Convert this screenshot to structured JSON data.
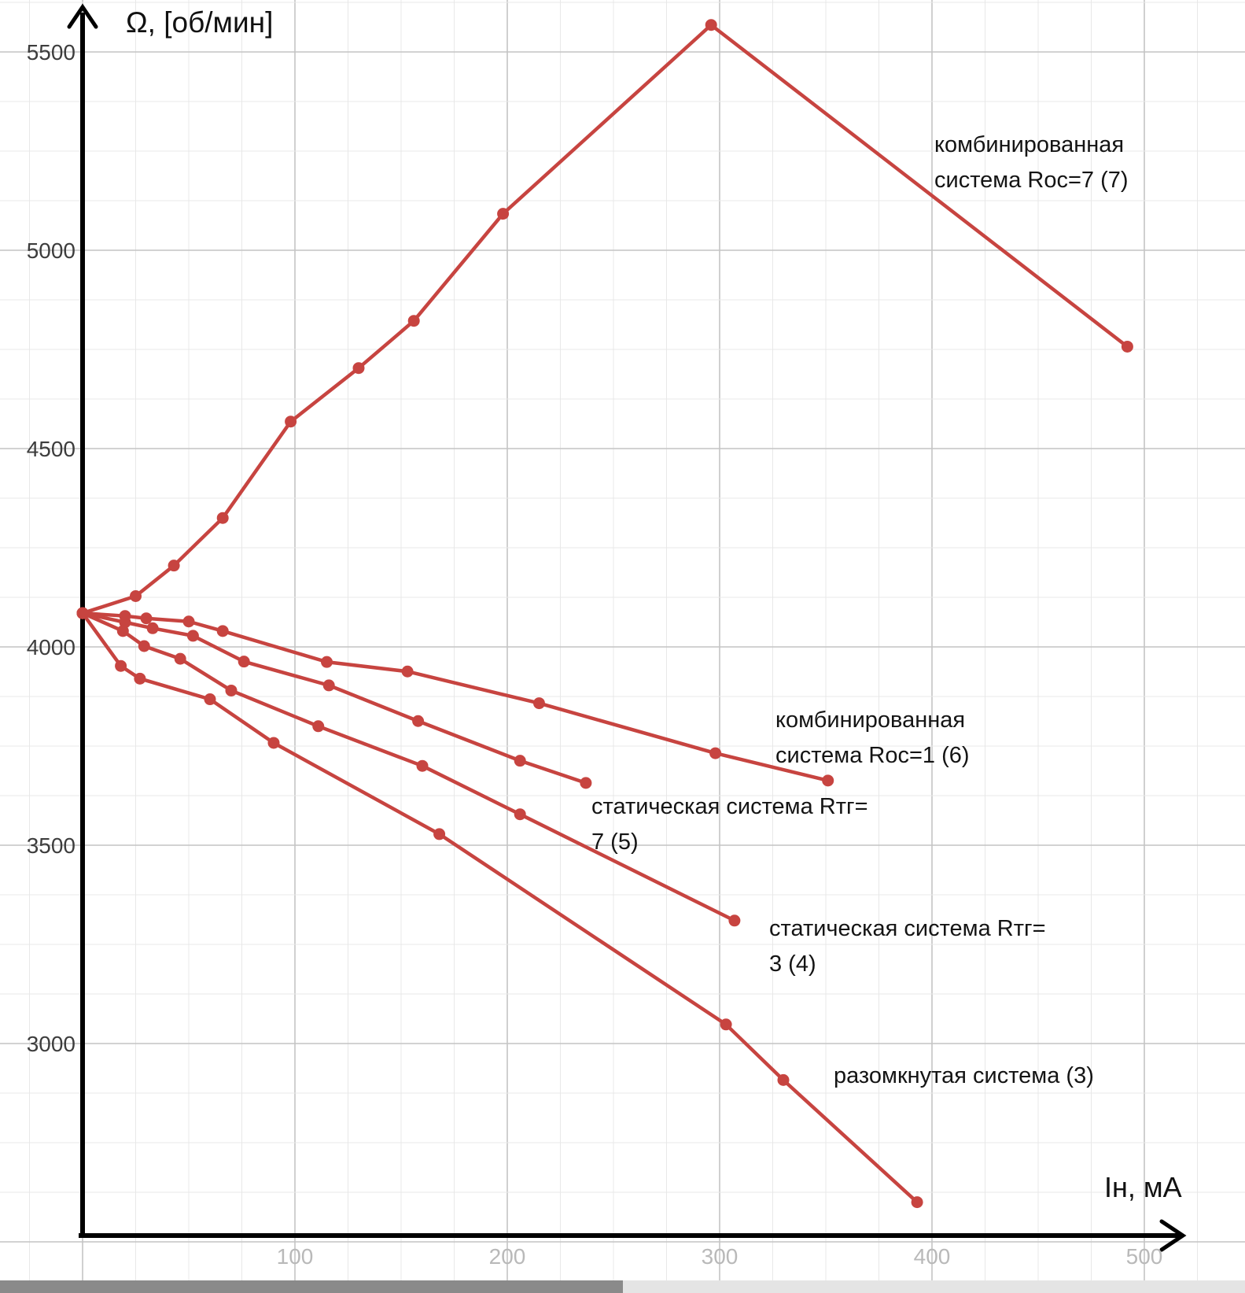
{
  "axis_titles": {
    "y": "Ω, [об/мин]",
    "x": "Iн, мА"
  },
  "chart_data": {
    "type": "line",
    "title": "",
    "xlabel": "Iн, мА",
    "ylabel": "Ω, [об/мин]",
    "xlim": [
      -39,
      547
    ],
    "ylim": [
      2510,
      5630
    ],
    "x_ticks": [
      100,
      200,
      300,
      400,
      500
    ],
    "y_ticks": [
      3000,
      3500,
      4000,
      4500,
      5000,
      5500
    ],
    "grid": {
      "on": true,
      "x_minor_step": 25,
      "x_major_step": 100,
      "y_minor_step": 125,
      "y_major_step": 500
    },
    "legend_position": "inline-annotations",
    "line_color": "#c74440",
    "axis_color": "#000000",
    "series": [
      {
        "name": "комбинированная система Roc=7 (7)",
        "points": [
          [
            0,
            4085
          ],
          [
            25,
            4128
          ],
          [
            43,
            4205
          ],
          [
            66,
            4325
          ],
          [
            98,
            4568
          ],
          [
            130,
            4703
          ],
          [
            156,
            4822
          ],
          [
            198,
            5092
          ],
          [
            296,
            5568
          ],
          [
            492,
            4757
          ]
        ]
      },
      {
        "name": "комбинированная система Roc=1 (6)",
        "points": [
          [
            0,
            4085
          ],
          [
            20,
            4078
          ],
          [
            30,
            4072
          ],
          [
            50,
            4064
          ],
          [
            66,
            4040
          ],
          [
            115,
            3962
          ],
          [
            153,
            3938
          ],
          [
            215,
            3858
          ],
          [
            298,
            3732
          ],
          [
            351,
            3663
          ]
        ]
      },
      {
        "name": "статическая система Rтг=7 (5)",
        "points": [
          [
            0,
            4085
          ],
          [
            20,
            4062
          ],
          [
            33,
            4047
          ],
          [
            52,
            4028
          ],
          [
            76,
            3963
          ],
          [
            116,
            3903
          ],
          [
            158,
            3813
          ],
          [
            206,
            3713
          ],
          [
            237,
            3657
          ]
        ]
      },
      {
        "name": "статическая система Rтг=3 (4)",
        "points": [
          [
            0,
            4085
          ],
          [
            19,
            4040
          ],
          [
            29,
            4002
          ],
          [
            46,
            3970
          ],
          [
            70,
            3890
          ],
          [
            111,
            3800
          ],
          [
            160,
            3700
          ],
          [
            206,
            3578
          ],
          [
            307,
            3310
          ]
        ]
      },
      {
        "name": "разомкнутая система (3)",
        "points": [
          [
            0,
            4085
          ],
          [
            18,
            3952
          ],
          [
            27,
            3920
          ],
          [
            60,
            3868
          ],
          [
            90,
            3758
          ],
          [
            168,
            3528
          ],
          [
            303,
            3048
          ],
          [
            330,
            2908
          ],
          [
            393,
            2600
          ]
        ]
      }
    ]
  },
  "annotations": [
    {
      "lines": [
        "комбинированная",
        "система Roc=7 (7)"
      ]
    },
    {
      "lines": [
        "комбинированная",
        "система Roc=1 (6)"
      ]
    },
    {
      "lines": [
        "статическая система Rтг=",
        "7 (5)"
      ]
    },
    {
      "lines": [
        "статическая система Rтг=",
        "3 (4)"
      ]
    },
    {
      "lines": [
        "разомкнутая система (3)"
      ]
    }
  ]
}
